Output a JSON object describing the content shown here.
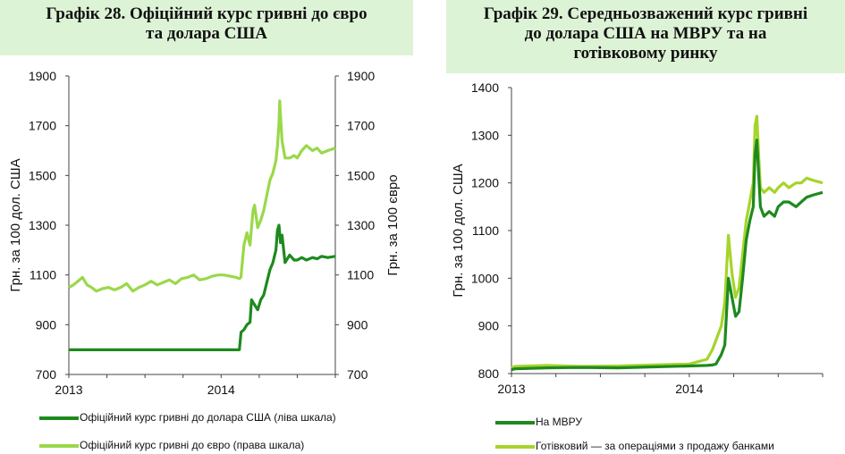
{
  "colors": {
    "dark_green": "#1e8a1e",
    "light_green": "#9ad84a",
    "lime": "#a6d42a",
    "title_bg": "#ddf3d6"
  },
  "left": {
    "title_line1": "Графік 28. Офіційний  курс гривні до євро",
    "title_line2": "та долара США",
    "legend": [
      "Офіційний курс гривні до долара США (ліва шкала)",
      "Офіційний курс гривні до євро (права шкала)"
    ]
  },
  "right": {
    "title_line1": "Графік 29. Середньозважений  курс гривні",
    "title_line2": "до долара США на МВРУ та на",
    "title_line3": "готівковому ринку",
    "legend": [
      "На МВРУ",
      "Готівковий — за операціями з продажу банками"
    ]
  },
  "chart_data": [
    {
      "type": "line",
      "title": "Графік 28. Офіційний  курс гривні до євро та долара США",
      "xlabel": "",
      "x_ticks": [
        "2013",
        "2014"
      ],
      "xlim": [
        2013.0,
        2014.75
      ],
      "ylabel": "Грн. за 100 дол. США",
      "ylim": [
        700,
        1900
      ],
      "y_ticks": [
        700,
        900,
        1100,
        1300,
        1500,
        1700,
        1900
      ],
      "y2label": "Грн. за 100 євро",
      "y2lim": [
        700,
        1900
      ],
      "y2_ticks": [
        700,
        900,
        1100,
        1300,
        1500,
        1700,
        1900
      ],
      "grid": false,
      "legend_position": "bottom",
      "series": [
        {
          "name": "Офіційний курс гривні до долара США (ліва шкала)",
          "axis": "left",
          "x": [
            2013.0,
            2013.2,
            2013.4,
            2013.6,
            2013.8,
            2014.0,
            2014.12,
            2014.131,
            2014.15,
            2014.17,
            2014.19,
            2014.2,
            2014.22,
            2014.24,
            2014.26,
            2014.28,
            2014.3,
            2014.32,
            2014.34,
            2014.36,
            2014.37,
            2014.38,
            2014.39,
            2014.4,
            2014.42,
            2014.45,
            2014.48,
            2014.5,
            2014.53,
            2014.56,
            2014.6,
            2014.63,
            2014.66,
            2014.7,
            2014.75
          ],
          "values": [
            799,
            799,
            799,
            799,
            799,
            799,
            799,
            870,
            880,
            900,
            910,
            1000,
            980,
            960,
            1000,
            1020,
            1070,
            1120,
            1150,
            1200,
            1280,
            1300,
            1230,
            1260,
            1150,
            1180,
            1160,
            1160,
            1170,
            1160,
            1170,
            1165,
            1175,
            1170,
            1175
          ]
        },
        {
          "name": "Офіційний курс гривні до євро (права шкала)",
          "axis": "right",
          "x": [
            2013.0,
            2013.03,
            2013.06,
            2013.09,
            2013.12,
            2013.15,
            2013.18,
            2013.22,
            2013.26,
            2013.3,
            2013.34,
            2013.38,
            2013.42,
            2013.46,
            2013.5,
            2013.54,
            2013.58,
            2013.62,
            2013.66,
            2013.7,
            2013.74,
            2013.78,
            2013.82,
            2013.86,
            2013.9,
            2013.94,
            2013.98,
            2014.02,
            2014.06,
            2014.1,
            2014.12,
            2014.13,
            2014.15,
            2014.17,
            2014.19,
            2014.21,
            2014.22,
            2014.24,
            2014.26,
            2014.28,
            2014.3,
            2014.32,
            2014.34,
            2014.36,
            2014.37,
            2014.38,
            2014.385,
            2014.39,
            2014.4,
            2014.42,
            2014.45,
            2014.48,
            2014.5,
            2014.53,
            2014.56,
            2014.6,
            2014.63,
            2014.66,
            2014.7,
            2014.75
          ],
          "values": [
            1050,
            1060,
            1075,
            1090,
            1060,
            1050,
            1035,
            1045,
            1050,
            1040,
            1050,
            1065,
            1035,
            1050,
            1060,
            1075,
            1060,
            1070,
            1080,
            1065,
            1085,
            1090,
            1100,
            1080,
            1085,
            1095,
            1100,
            1100,
            1095,
            1090,
            1085,
            1090,
            1220,
            1270,
            1220,
            1360,
            1380,
            1290,
            1320,
            1360,
            1420,
            1480,
            1510,
            1560,
            1620,
            1710,
            1800,
            1740,
            1640,
            1570,
            1570,
            1580,
            1570,
            1600,
            1620,
            1600,
            1610,
            1590,
            1600,
            1610
          ]
        }
      ]
    },
    {
      "type": "line",
      "title": "Графік 29. Середньозважений  курс гривні до долара США на МВРУ та на готівковому ринку",
      "xlabel": "",
      "x_ticks": [
        "2013",
        "2014"
      ],
      "xlim": [
        2013.0,
        2014.75
      ],
      "ylabel": "Грн. за 100 дол. США",
      "ylim": [
        800,
        1400
      ],
      "y_ticks": [
        800,
        900,
        1000,
        1100,
        1200,
        1300,
        1400
      ],
      "grid": false,
      "legend_position": "bottom",
      "series": [
        {
          "name": "На МВРУ",
          "x": [
            2013.0,
            2013.02,
            2013.2,
            2013.4,
            2013.6,
            2013.8,
            2014.0,
            2014.1,
            2014.13,
            2014.15,
            2014.18,
            2014.2,
            2014.22,
            2014.24,
            2014.26,
            2014.28,
            2014.3,
            2014.32,
            2014.34,
            2014.36,
            2014.37,
            2014.38,
            2014.39,
            2014.4,
            2014.42,
            2014.45,
            2014.48,
            2014.5,
            2014.53,
            2014.56,
            2014.6,
            2014.63,
            2014.66,
            2014.7,
            2014.75
          ],
          "values": [
            808,
            810,
            812,
            813,
            812,
            814,
            816,
            817,
            818,
            820,
            840,
            860,
            1000,
            960,
            920,
            930,
            1000,
            1080,
            1120,
            1150,
            1260,
            1290,
            1220,
            1150,
            1130,
            1140,
            1130,
            1150,
            1160,
            1160,
            1150,
            1160,
            1170,
            1175,
            1180
          ]
        },
        {
          "name": "Готівковий — за операціями з продажу банками",
          "x": [
            2013.0,
            2013.02,
            2013.2,
            2013.4,
            2013.6,
            2013.8,
            2014.0,
            2014.1,
            2014.13,
            2014.15,
            2014.18,
            2014.2,
            2014.22,
            2014.24,
            2014.26,
            2014.28,
            2014.3,
            2014.32,
            2014.34,
            2014.36,
            2014.37,
            2014.38,
            2014.39,
            2014.4,
            2014.42,
            2014.45,
            2014.48,
            2014.5,
            2014.53,
            2014.56,
            2014.6,
            2014.63,
            2014.66,
            2014.7,
            2014.75
          ],
          "values": [
            812,
            815,
            817,
            815,
            816,
            818,
            820,
            830,
            850,
            870,
            900,
            950,
            1090,
            1010,
            960,
            980,
            1050,
            1120,
            1160,
            1200,
            1320,
            1340,
            1260,
            1190,
            1180,
            1190,
            1180,
            1190,
            1200,
            1190,
            1200,
            1200,
            1210,
            1205,
            1200
          ]
        }
      ]
    }
  ]
}
